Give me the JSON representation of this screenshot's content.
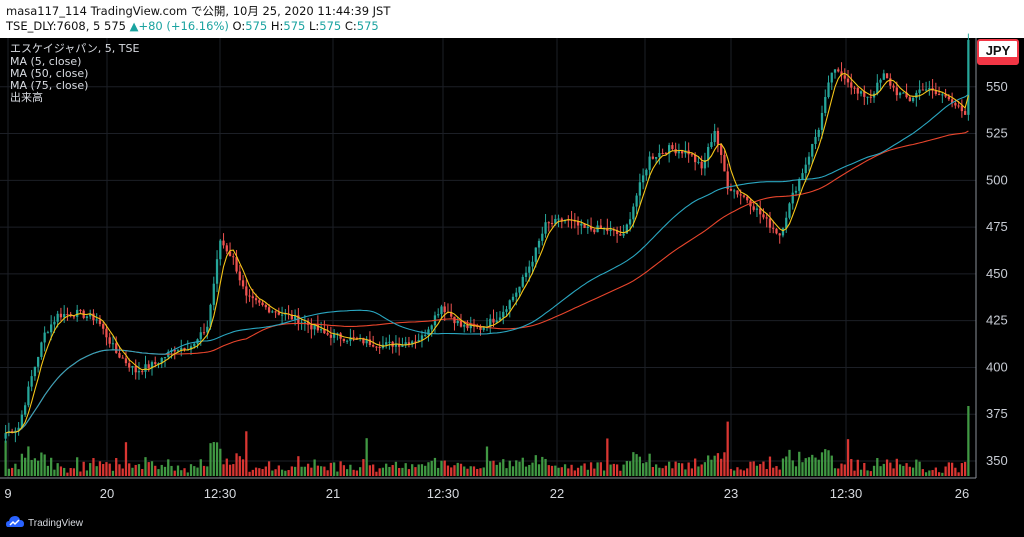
{
  "header": {
    "line1": "masa117_114 TradingView.com で公開, 10月 25, 2020 11:44:39 JST",
    "line2_prefix": "TSE_DLY:7608, 5 575 ",
    "change_arrow": "▲",
    "change": "+80 (+16.16%)",
    "o_label": " O:",
    "o_value": "575",
    "h_label": " H:",
    "h_value": "575",
    "l_label": " L:",
    "l_value": "575",
    "c_label": " C:",
    "c_value": "575"
  },
  "legend": {
    "symbol": "エスケイジャパン, 5, TSE",
    "ma5": "MA (5, close)",
    "ma50": "MA (50, close)",
    "ma75": "MA (75, close)",
    "volume": "出来高"
  },
  "currency": "JPY",
  "footer": {
    "brand": "TradingView"
  },
  "colors": {
    "background": "#000000",
    "up": "#26a69a",
    "down": "#ef5350",
    "vol_up": "#43a047",
    "vol_down": "#e53935",
    "ma5": "#f5c518",
    "ma50": "#2aa6c0",
    "ma75": "#e8452c",
    "grid": "#1c1f26",
    "currency_badge": "#f23645"
  },
  "chart_data": {
    "type": "candlestick",
    "interval": "5 min",
    "y_axis": {
      "ticks": [
        350,
        375,
        400,
        425,
        450,
        475,
        500,
        525,
        550
      ],
      "range": [
        342,
        575
      ]
    },
    "x_axis": {
      "tick_labels": [
        "9",
        "20",
        "12:30",
        "21",
        "12:30",
        "22",
        "",
        "23",
        "12:30",
        "26"
      ]
    },
    "grid": true,
    "legend_position": "top-left",
    "price_path": {
      "description_points": [
        [
          0,
          365
        ],
        [
          4,
          368
        ],
        [
          8,
          395
        ],
        [
          12,
          418
        ],
        [
          16,
          428
        ],
        [
          22,
          429
        ],
        [
          28,
          426
        ],
        [
          34,
          408
        ],
        [
          40,
          398
        ],
        [
          46,
          402
        ],
        [
          52,
          410
        ],
        [
          58,
          412
        ],
        [
          62,
          422
        ],
        [
          66,
          468
        ],
        [
          70,
          458
        ],
        [
          74,
          437
        ],
        [
          80,
          432
        ],
        [
          86,
          428
        ],
        [
          92,
          424
        ],
        [
          98,
          418
        ],
        [
          104,
          416
        ],
        [
          110,
          414
        ],
        [
          116,
          412
        ],
        [
          122,
          413
        ],
        [
          128,
          416
        ],
        [
          134,
          433
        ],
        [
          140,
          422
        ],
        [
          146,
          421
        ],
        [
          152,
          428
        ],
        [
          158,
          443
        ],
        [
          162,
          458
        ],
        [
          166,
          476
        ],
        [
          172,
          479
        ],
        [
          178,
          474
        ],
        [
          184,
          474
        ],
        [
          190,
          470
        ],
        [
          194,
          492
        ],
        [
          198,
          512
        ],
        [
          204,
          517
        ],
        [
          210,
          515
        ],
        [
          214,
          506
        ],
        [
          218,
          527
        ],
        [
          222,
          497
        ],
        [
          228,
          490
        ],
        [
          234,
          478
        ],
        [
          238,
          471
        ],
        [
          242,
          492
        ],
        [
          246,
          509
        ],
        [
          250,
          528
        ],
        [
          254,
          558
        ],
        [
          258,
          556
        ],
        [
          262,
          546
        ],
        [
          266,
          545
        ],
        [
          270,
          556
        ],
        [
          274,
          547
        ],
        [
          278,
          543
        ],
        [
          282,
          550
        ],
        [
          286,
          546
        ],
        [
          290,
          545
        ],
        [
          294,
          536
        ],
        [
          296,
          575
        ]
      ],
      "last_close": 575,
      "final_spike_from": 535
    },
    "ma_final": {
      "ma5": 557,
      "ma50": 535,
      "ma75": 524
    },
    "volume": {
      "baseline_value": 0,
      "max_spike_ratio": 1.0
    }
  }
}
